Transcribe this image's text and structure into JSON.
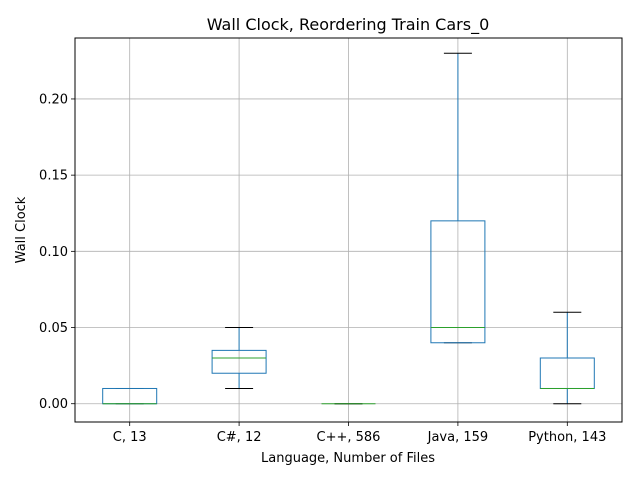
{
  "chart_data": {
    "type": "box",
    "title": "Wall Clock, Reordering Train Cars_0",
    "xlabel": "Language, Number of Files",
    "ylabel": "Wall Clock",
    "ylim": [
      -0.012,
      0.24
    ],
    "yticks": [
      0.0,
      0.05,
      0.1,
      0.15,
      0.2
    ],
    "ytick_labels": [
      "0.00",
      "0.05",
      "0.10",
      "0.15",
      "0.20"
    ],
    "grid": true,
    "categories": [
      "C, 13",
      "C#, 12",
      "C++, 586",
      "Java, 159",
      "Python, 143"
    ],
    "boxes": [
      {
        "whisker_low": 0.0,
        "q1": 0.0,
        "median": 0.0,
        "q3": 0.01,
        "whisker_high": 0.01
      },
      {
        "whisker_low": 0.01,
        "q1": 0.02,
        "median": 0.03,
        "q3": 0.035,
        "whisker_high": 0.05
      },
      {
        "whisker_low": 0.0,
        "q1": 0.0,
        "median": 0.0,
        "q3": 0.0,
        "whisker_high": 0.0
      },
      {
        "whisker_low": 0.04,
        "q1": 0.04,
        "median": 0.05,
        "q3": 0.12,
        "whisker_high": 0.23
      },
      {
        "whisker_low": 0.0,
        "q1": 0.01,
        "median": 0.01,
        "q3": 0.03,
        "whisker_high": 0.06
      }
    ],
    "colors": {
      "box": "#1f77b4",
      "median": "#2ca02c",
      "whisker_cap": "#000000",
      "grid": "#b0b0b0"
    }
  }
}
